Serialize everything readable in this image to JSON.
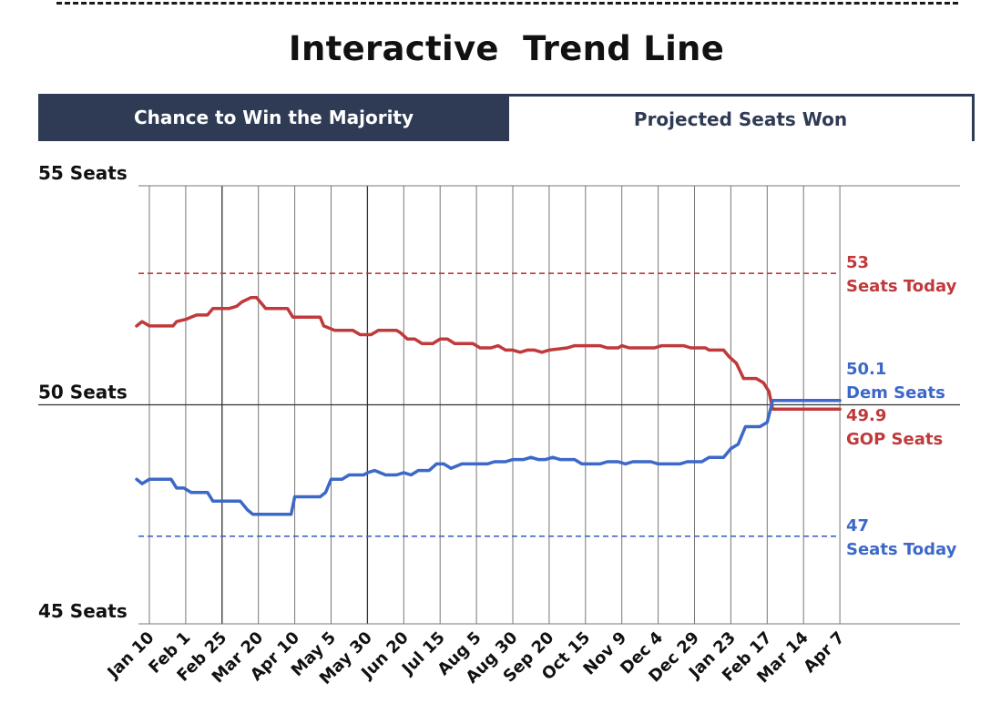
{
  "page": {
    "title": "Interactive  Trend Line"
  },
  "tabs": [
    {
      "label": "Chance to Win the Majority",
      "active": true
    },
    {
      "label": "Projected Seats Won",
      "active": false
    }
  ],
  "colors": {
    "gop": "#c0393b",
    "dem": "#3c68c8",
    "tab_active_bg": "#2f3b55",
    "grid": "#555555"
  },
  "chart_data": {
    "type": "line",
    "title": "Projected Seats Won",
    "ylim": [
      45,
      55
    ],
    "y_ticks": [
      {
        "value": 55,
        "label": "55 Seats"
      },
      {
        "value": 50,
        "label": "50 Seats"
      },
      {
        "value": 45,
        "label": "45 Seats"
      }
    ],
    "x_ticks": [
      "Jan 10",
      "Feb 1",
      "Feb 25",
      "Mar 20",
      "Apr 10",
      "May 5",
      "May 30",
      "Jun 20",
      "Jul 15",
      "Aug 5",
      "Aug 30",
      "Sep 20",
      "Oct 15",
      "Nov 9",
      "Dec 4",
      "Dec 29",
      "Jan 23",
      "Feb 17",
      "Mar 14",
      "Apr 7"
    ],
    "x_range": [
      -0.35,
      19.0
    ],
    "reference_lines": [
      {
        "name": "GOP Seats Today",
        "value": 53,
        "label_value": "53",
        "label_text": "Seats Today",
        "series": "gop"
      },
      {
        "name": "Dem Seats Today",
        "value": 47,
        "label_value": "47",
        "label_text": "Seats Today",
        "series": "dem"
      }
    ],
    "series": [
      {
        "name": "GOP Seats",
        "key": "gop",
        "end_value_label": "49.9",
        "end_text": "GOP Seats",
        "points": [
          [
            -0.35,
            51.8
          ],
          [
            -0.2,
            51.9
          ],
          [
            0,
            51.8
          ],
          [
            0.3,
            51.8
          ],
          [
            0.65,
            51.8
          ],
          [
            0.75,
            51.9
          ],
          [
            1.0,
            51.95
          ],
          [
            1.15,
            52.0
          ],
          [
            1.3,
            52.05
          ],
          [
            1.6,
            52.05
          ],
          [
            1.75,
            52.2
          ],
          [
            2.2,
            52.2
          ],
          [
            2.4,
            52.25
          ],
          [
            2.55,
            52.35
          ],
          [
            2.8,
            52.45
          ],
          [
            2.95,
            52.45
          ],
          [
            3.2,
            52.2
          ],
          [
            3.8,
            52.2
          ],
          [
            3.95,
            52.0
          ],
          [
            4.7,
            52.0
          ],
          [
            4.8,
            51.8
          ],
          [
            5.1,
            51.7
          ],
          [
            5.6,
            51.7
          ],
          [
            5.8,
            51.6
          ],
          [
            6.1,
            51.6
          ],
          [
            6.3,
            51.7
          ],
          [
            6.8,
            51.7
          ],
          [
            6.9,
            51.65
          ],
          [
            7.1,
            51.5
          ],
          [
            7.3,
            51.5
          ],
          [
            7.5,
            51.4
          ],
          [
            7.8,
            51.4
          ],
          [
            8.0,
            51.5
          ],
          [
            8.2,
            51.5
          ],
          [
            8.4,
            51.4
          ],
          [
            8.9,
            51.4
          ],
          [
            9.1,
            51.3
          ],
          [
            9.4,
            51.3
          ],
          [
            9.6,
            51.35
          ],
          [
            9.8,
            51.25
          ],
          [
            10.0,
            51.25
          ],
          [
            10.2,
            51.2
          ],
          [
            10.4,
            51.25
          ],
          [
            10.6,
            51.25
          ],
          [
            10.8,
            51.2
          ],
          [
            11.0,
            51.25
          ],
          [
            11.5,
            51.3
          ],
          [
            11.7,
            51.35
          ],
          [
            12.4,
            51.35
          ],
          [
            12.6,
            51.3
          ],
          [
            12.9,
            51.3
          ],
          [
            13.0,
            51.35
          ],
          [
            13.2,
            51.3
          ],
          [
            13.9,
            51.3
          ],
          [
            14.1,
            51.35
          ],
          [
            14.7,
            51.35
          ],
          [
            14.9,
            51.3
          ],
          [
            15.3,
            51.3
          ],
          [
            15.4,
            51.25
          ],
          [
            15.8,
            51.25
          ],
          [
            15.95,
            51.1
          ],
          [
            16.15,
            50.95
          ],
          [
            16.35,
            50.6
          ],
          [
            16.7,
            50.6
          ],
          [
            16.9,
            50.5
          ],
          [
            17.05,
            50.3
          ],
          [
            17.15,
            49.9
          ],
          [
            19.0,
            49.9
          ]
        ]
      },
      {
        "name": "Dem Seats",
        "key": "dem",
        "end_value_label": "50.1",
        "end_text": "Dem Seats",
        "points": [
          [
            -0.35,
            48.3
          ],
          [
            -0.2,
            48.2
          ],
          [
            0,
            48.3
          ],
          [
            0.6,
            48.3
          ],
          [
            0.75,
            48.1
          ],
          [
            0.95,
            48.1
          ],
          [
            1.15,
            48.0
          ],
          [
            1.6,
            48.0
          ],
          [
            1.75,
            47.8
          ],
          [
            2.5,
            47.8
          ],
          [
            2.7,
            47.6
          ],
          [
            2.85,
            47.5
          ],
          [
            3.05,
            47.5
          ],
          [
            3.9,
            47.5
          ],
          [
            4.0,
            47.9
          ],
          [
            4.7,
            47.9
          ],
          [
            4.85,
            48.0
          ],
          [
            5.0,
            48.3
          ],
          [
            5.3,
            48.3
          ],
          [
            5.5,
            48.4
          ],
          [
            5.9,
            48.4
          ],
          [
            6.0,
            48.45
          ],
          [
            6.2,
            48.5
          ],
          [
            6.5,
            48.4
          ],
          [
            6.8,
            48.4
          ],
          [
            7.0,
            48.45
          ],
          [
            7.2,
            48.4
          ],
          [
            7.4,
            48.5
          ],
          [
            7.7,
            48.5
          ],
          [
            7.9,
            48.65
          ],
          [
            8.1,
            48.65
          ],
          [
            8.3,
            48.55
          ],
          [
            8.6,
            48.65
          ],
          [
            9.3,
            48.65
          ],
          [
            9.5,
            48.7
          ],
          [
            9.8,
            48.7
          ],
          [
            10.0,
            48.75
          ],
          [
            10.3,
            48.75
          ],
          [
            10.5,
            48.8
          ],
          [
            10.7,
            48.75
          ],
          [
            10.9,
            48.75
          ],
          [
            11.1,
            48.8
          ],
          [
            11.3,
            48.75
          ],
          [
            11.7,
            48.75
          ],
          [
            11.9,
            48.65
          ],
          [
            12.4,
            48.65
          ],
          [
            12.6,
            48.7
          ],
          [
            12.9,
            48.7
          ],
          [
            13.1,
            48.65
          ],
          [
            13.3,
            48.7
          ],
          [
            13.8,
            48.7
          ],
          [
            14.0,
            48.65
          ],
          [
            14.6,
            48.65
          ],
          [
            14.8,
            48.7
          ],
          [
            15.2,
            48.7
          ],
          [
            15.4,
            48.8
          ],
          [
            15.8,
            48.8
          ],
          [
            16.0,
            49.0
          ],
          [
            16.2,
            49.1
          ],
          [
            16.4,
            49.5
          ],
          [
            16.8,
            49.5
          ],
          [
            17.0,
            49.6
          ],
          [
            17.15,
            50.1
          ],
          [
            19.0,
            50.1
          ]
        ]
      }
    ]
  }
}
